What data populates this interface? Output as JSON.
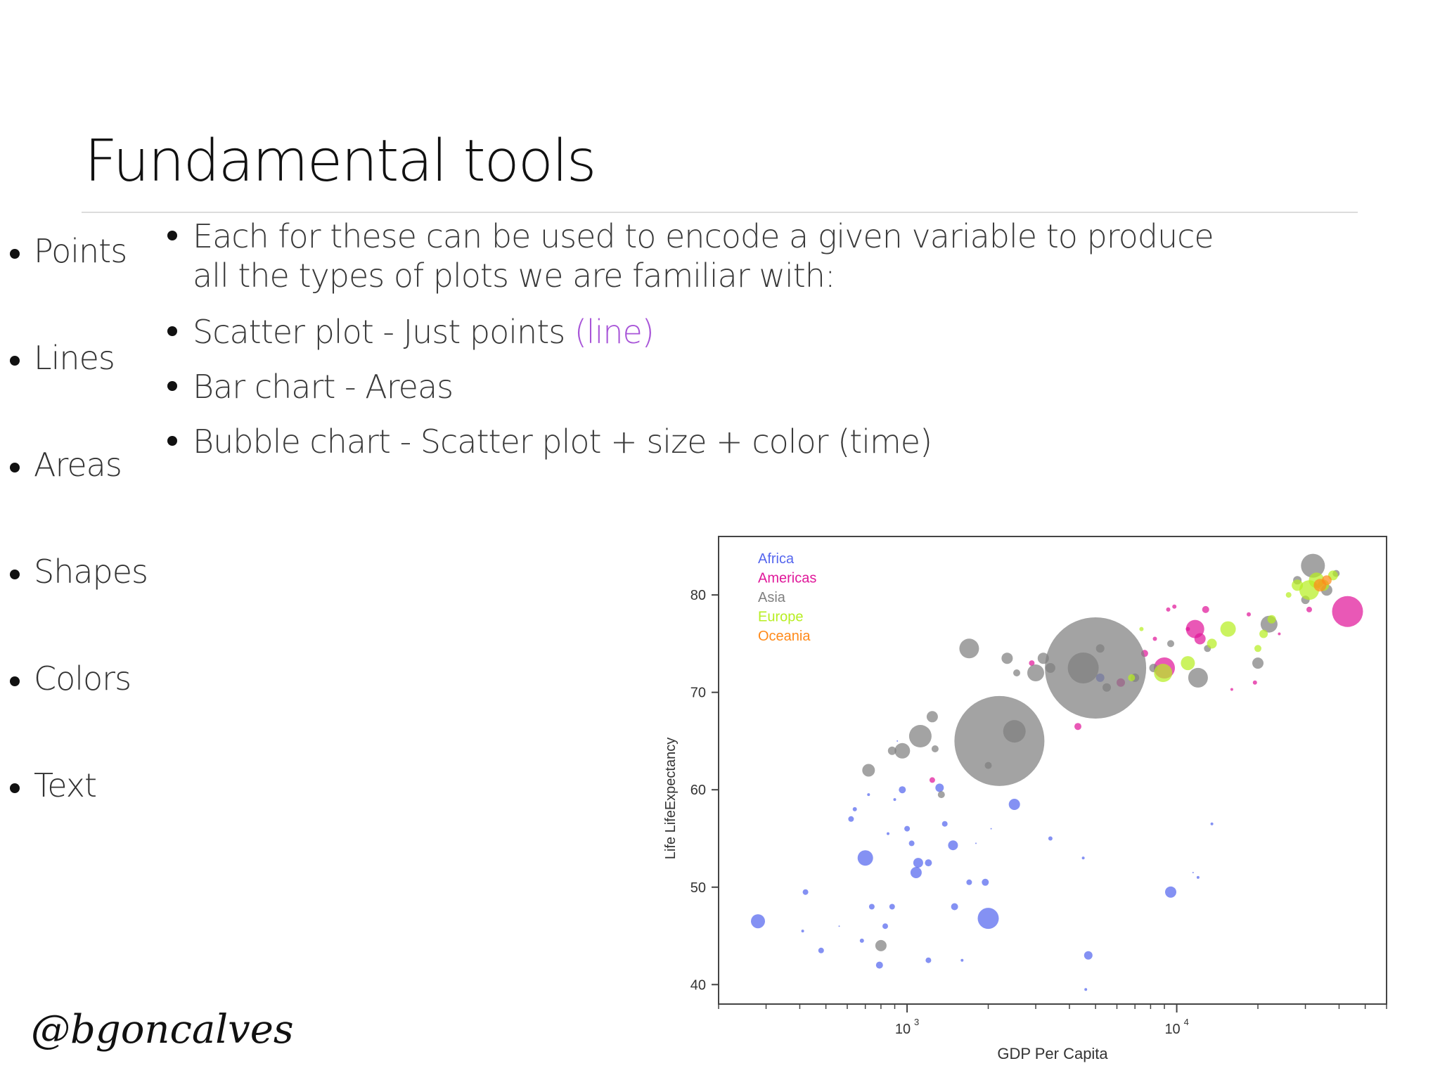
{
  "slide": {
    "title": "Fundamental tools",
    "tools": [
      "Points",
      "Lines",
      "Areas",
      "Shapes",
      "Colors",
      "Text"
    ],
    "bullets": [
      {
        "line1": "Each for these can be used to encode a given variable to produce",
        "line2": "all the types of plots we are familiar with:"
      },
      {
        "text": "Scatter plot - Just points ",
        "accent": "(line)"
      },
      {
        "text": "Bar chart - Areas"
      },
      {
        "text": "Bubble chart - Scatter plot + size + color (time)"
      }
    ],
    "accent_color": "#a855d8",
    "handle": "@bgoncalves"
  },
  "chart_data": {
    "type": "scatter",
    "xlabel": "GDP Per Capita",
    "ylabel": "Life LifeExpectancy",
    "xscale": "log",
    "xlim": [
      200,
      60000
    ],
    "ylim": [
      38,
      86
    ],
    "x_ticks": [
      {
        "value": 1000,
        "base": "10",
        "exp": "3"
      },
      {
        "value": 10000,
        "base": "10",
        "exp": "4"
      }
    ],
    "y_ticks": [
      40,
      50,
      60,
      70,
      80
    ],
    "grid": false,
    "legend": {
      "placement": "top-left",
      "entries": [
        {
          "name": "Africa",
          "color": "#5566ee"
        },
        {
          "name": "Americas",
          "color": "#e0189a"
        },
        {
          "name": "Asia",
          "color": "#808080"
        },
        {
          "name": "Europe",
          "color": "#b7ee22"
        },
        {
          "name": "Oceania",
          "color": "#ff8a1a"
        }
      ]
    },
    "series": [
      {
        "name": "Africa",
        "points": [
          [
            280,
            46.5,
            10
          ],
          [
            420,
            49.5,
            4
          ],
          [
            410,
            45.5,
            2
          ],
          [
            480,
            43.5,
            4
          ],
          [
            560,
            46.0,
            1
          ],
          [
            620,
            57,
            4
          ],
          [
            640,
            58,
            3
          ],
          [
            680,
            44.5,
            3
          ],
          [
            700,
            53,
            11
          ],
          [
            720,
            59.5,
            2
          ],
          [
            740,
            48.0,
            4
          ],
          [
            790,
            42.0,
            5
          ],
          [
            830,
            46.0,
            4
          ],
          [
            850,
            55.5,
            2
          ],
          [
            880,
            48.0,
            4
          ],
          [
            900,
            59,
            2
          ],
          [
            920,
            65,
            1
          ],
          [
            960,
            60,
            5
          ],
          [
            1000,
            56,
            4
          ],
          [
            1040,
            54.5,
            4
          ],
          [
            1080,
            51.5,
            8
          ],
          [
            1100,
            52.5,
            7
          ],
          [
            1200,
            52.5,
            5
          ],
          [
            1200,
            42.5,
            4
          ],
          [
            1320,
            60.2,
            6
          ],
          [
            1380,
            56.5,
            4
          ],
          [
            1480,
            54.3,
            7
          ],
          [
            1500,
            48.0,
            5
          ],
          [
            1600,
            42.5,
            2
          ],
          [
            1700,
            50.5,
            4
          ],
          [
            1800,
            54.5,
            1
          ],
          [
            1950,
            50.5,
            5
          ],
          [
            2000,
            46.8,
            15
          ],
          [
            2050,
            56.0,
            1
          ],
          [
            2500,
            58.5,
            8
          ],
          [
            3400,
            55.0,
            3
          ],
          [
            4500,
            53.0,
            2
          ],
          [
            4600,
            39.5,
            2
          ],
          [
            4700,
            43.0,
            6
          ],
          [
            5200,
            71.5,
            6
          ],
          [
            9500,
            49.5,
            8
          ],
          [
            11500,
            51.5,
            1
          ],
          [
            12000,
            51.0,
            2
          ],
          [
            13500,
            56.5,
            2
          ]
        ]
      },
      {
        "name": "Americas",
        "points": [
          [
            1240,
            61,
            4
          ],
          [
            2900,
            73,
            4
          ],
          [
            4300,
            66.5,
            5
          ],
          [
            6200,
            71,
            6
          ],
          [
            7600,
            74,
            5
          ],
          [
            8300,
            75.5,
            3
          ],
          [
            9000,
            72.5,
            15
          ],
          [
            9300,
            78.5,
            3
          ],
          [
            9800,
            78.8,
            3
          ],
          [
            11000,
            76.5,
            3
          ],
          [
            11700,
            76.5,
            13
          ],
          [
            12200,
            75.5,
            8
          ],
          [
            12800,
            78.5,
            5
          ],
          [
            16000,
            70.3,
            2
          ],
          [
            18500,
            78,
            3
          ],
          [
            19500,
            71,
            3
          ],
          [
            24000,
            76,
            2
          ],
          [
            31000,
            78.5,
            4
          ],
          [
            43000,
            78.3,
            22
          ]
        ]
      },
      {
        "name": "Asia",
        "points": [
          [
            720,
            62,
            9
          ],
          [
            800,
            44,
            8
          ],
          [
            880,
            64,
            6
          ],
          [
            960,
            64,
            11
          ],
          [
            1120,
            65.5,
            16
          ],
          [
            1240,
            67.5,
            8
          ],
          [
            1270,
            64.2,
            5
          ],
          [
            1340,
            59.5,
            5
          ],
          [
            1700,
            74.5,
            14
          ],
          [
            2000,
            62.5,
            5
          ],
          [
            2200,
            65,
            64
          ],
          [
            2350,
            73.5,
            8
          ],
          [
            2500,
            66,
            16
          ],
          [
            2550,
            72,
            5
          ],
          [
            3000,
            72,
            12
          ],
          [
            3200,
            73.5,
            8
          ],
          [
            3400,
            72.5,
            7
          ],
          [
            4500,
            72.5,
            22
          ],
          [
            5000,
            72.5,
            72
          ],
          [
            5200,
            74.5,
            6
          ],
          [
            5500,
            70.5,
            6
          ],
          [
            7000,
            71.5,
            6
          ],
          [
            8200,
            72.5,
            6
          ],
          [
            9500,
            75,
            5
          ],
          [
            12000,
            71.5,
            14
          ],
          [
            13000,
            74.5,
            5
          ],
          [
            20000,
            73.0,
            8
          ],
          [
            22000,
            77.0,
            12
          ],
          [
            28000,
            81.5,
            6
          ],
          [
            30000,
            79.5,
            6
          ],
          [
            32000,
            83,
            17
          ],
          [
            36000,
            80.5,
            8
          ],
          [
            39000,
            82.2,
            5
          ]
        ]
      },
      {
        "name": "Europe",
        "points": [
          [
            6800,
            71.5,
            5
          ],
          [
            7400,
            76.5,
            3
          ],
          [
            8900,
            72,
            13
          ],
          [
            11000,
            73,
            10
          ],
          [
            13500,
            75,
            7
          ],
          [
            15500,
            76.5,
            11
          ],
          [
            20000,
            74.5,
            5
          ],
          [
            21000,
            76,
            6
          ],
          [
            22500,
            77.5,
            6
          ],
          [
            26000,
            80,
            4
          ],
          [
            28000,
            81,
            8
          ],
          [
            31000,
            80.5,
            14
          ],
          [
            33000,
            81.5,
            11
          ],
          [
            35000,
            81,
            8
          ],
          [
            38000,
            82,
            7
          ]
        ]
      },
      {
        "name": "Oceania",
        "points": [
          [
            34000,
            81,
            9
          ],
          [
            36000,
            81.5,
            7
          ]
        ]
      }
    ]
  }
}
